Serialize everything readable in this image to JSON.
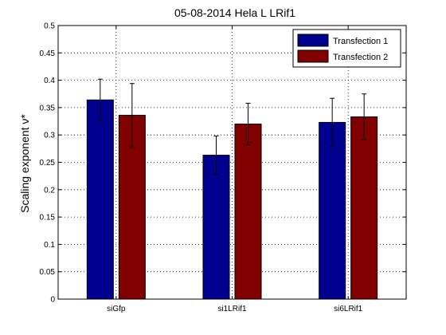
{
  "chart_data": {
    "type": "bar",
    "title": "05-08-2014 Hela L LRif1",
    "ylabel": "Scaling exponent ν*",
    "xlabel": "",
    "categories": [
      "siGfp",
      "si1LRif1",
      "si6LRif1"
    ],
    "ylim": [
      0,
      0.5
    ],
    "yticks": [
      0,
      0.05,
      0.1,
      0.15,
      0.2,
      0.25,
      0.3,
      0.35,
      0.4,
      0.45,
      0.5
    ],
    "ytick_labels": [
      "0",
      "0.05",
      "0.1",
      "0.15",
      "0.2",
      "0.25",
      "0.3",
      "0.35",
      "0.4",
      "0.45",
      "0.5"
    ],
    "grid": true,
    "legend_position": "top-right",
    "series": [
      {
        "name": "Transfection 1",
        "color": "#00008f",
        "values": [
          0.364,
          0.263,
          0.323
        ],
        "errors": [
          0.038,
          0.035,
          0.044
        ]
      },
      {
        "name": "Transfection 2",
        "color": "#800000",
        "values": [
          0.336,
          0.32,
          0.333
        ],
        "errors": [
          0.058,
          0.038,
          0.042
        ]
      }
    ]
  }
}
